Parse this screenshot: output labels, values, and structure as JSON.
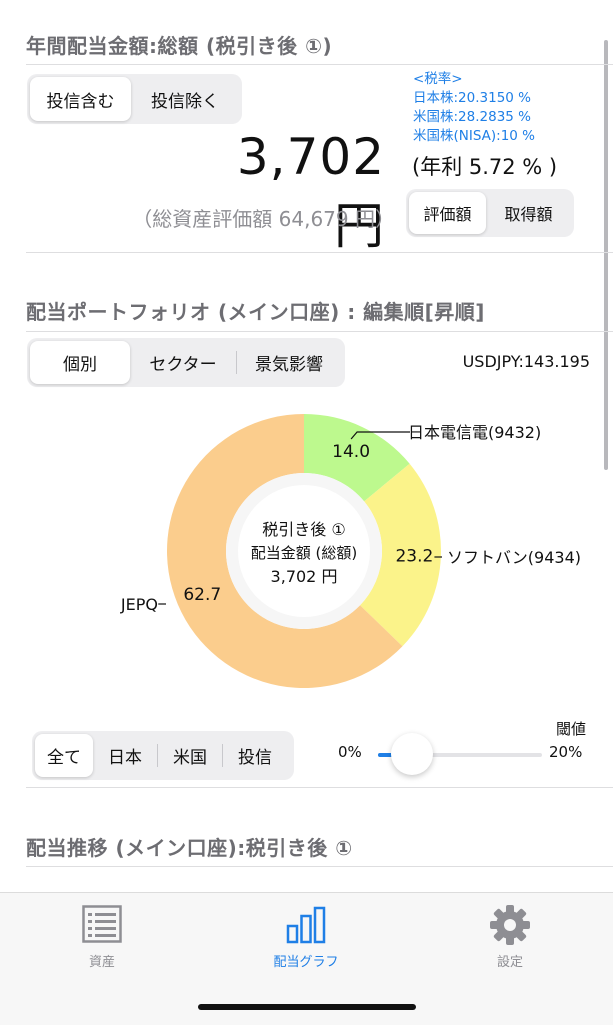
{
  "summary": {
    "title": "年間配当金額:総額 (税引き後 ①)",
    "fund_toggle": [
      "投信含む",
      "投信除く"
    ],
    "fund_selected": 0,
    "amount": "3,702 円",
    "annual_rate": "(年利 5.72 % )",
    "asset_total": "（総資産評価額 64,679 円）",
    "tax_rates": [
      "<税率>",
      "日本株:20.3150 %",
      "米国株:28.2835 %",
      "米国株(NISA):10 %"
    ],
    "value_toggle": [
      "評価額",
      "取得額"
    ],
    "value_selected": 0
  },
  "portfolio": {
    "title": "配当ポートフォリオ (メイン口座) : 編集順[昇順]",
    "view_tabs": [
      "個別",
      "セクター",
      "景気影響"
    ],
    "view_selected": 0,
    "fx_rate": "USDJPY:143.195",
    "center_lines": [
      "税引き後 ①",
      "配当金額 (総額)",
      "3,702 円"
    ],
    "filter_tabs": [
      "全て",
      "日本",
      "米国",
      "投信"
    ],
    "filter_selected": 0,
    "threshold_label": "閾値",
    "threshold_min": "0%",
    "threshold_max": "20%",
    "threshold_value": 0.04
  },
  "chart_data": {
    "type": "pie",
    "categories": [
      "日本電信電(9432)",
      "ソフトバン(9434)",
      "JEPQ"
    ],
    "values": [
      14.0,
      23.2,
      62.7
    ],
    "value_labels": [
      "14.0",
      "23.2",
      "62.7"
    ],
    "colors": [
      "#bdf98e",
      "#fbf38a",
      "#fbcd8d"
    ]
  },
  "trend": {
    "title": "配当推移 (メイン口座):税引き後 ①"
  },
  "tabbar": [
    {
      "label": "資産",
      "icon": "list-icon",
      "active": false
    },
    {
      "label": "配当グラフ",
      "icon": "bar-chart-icon",
      "active": true
    },
    {
      "label": "設定",
      "icon": "gear-icon",
      "active": false
    }
  ]
}
